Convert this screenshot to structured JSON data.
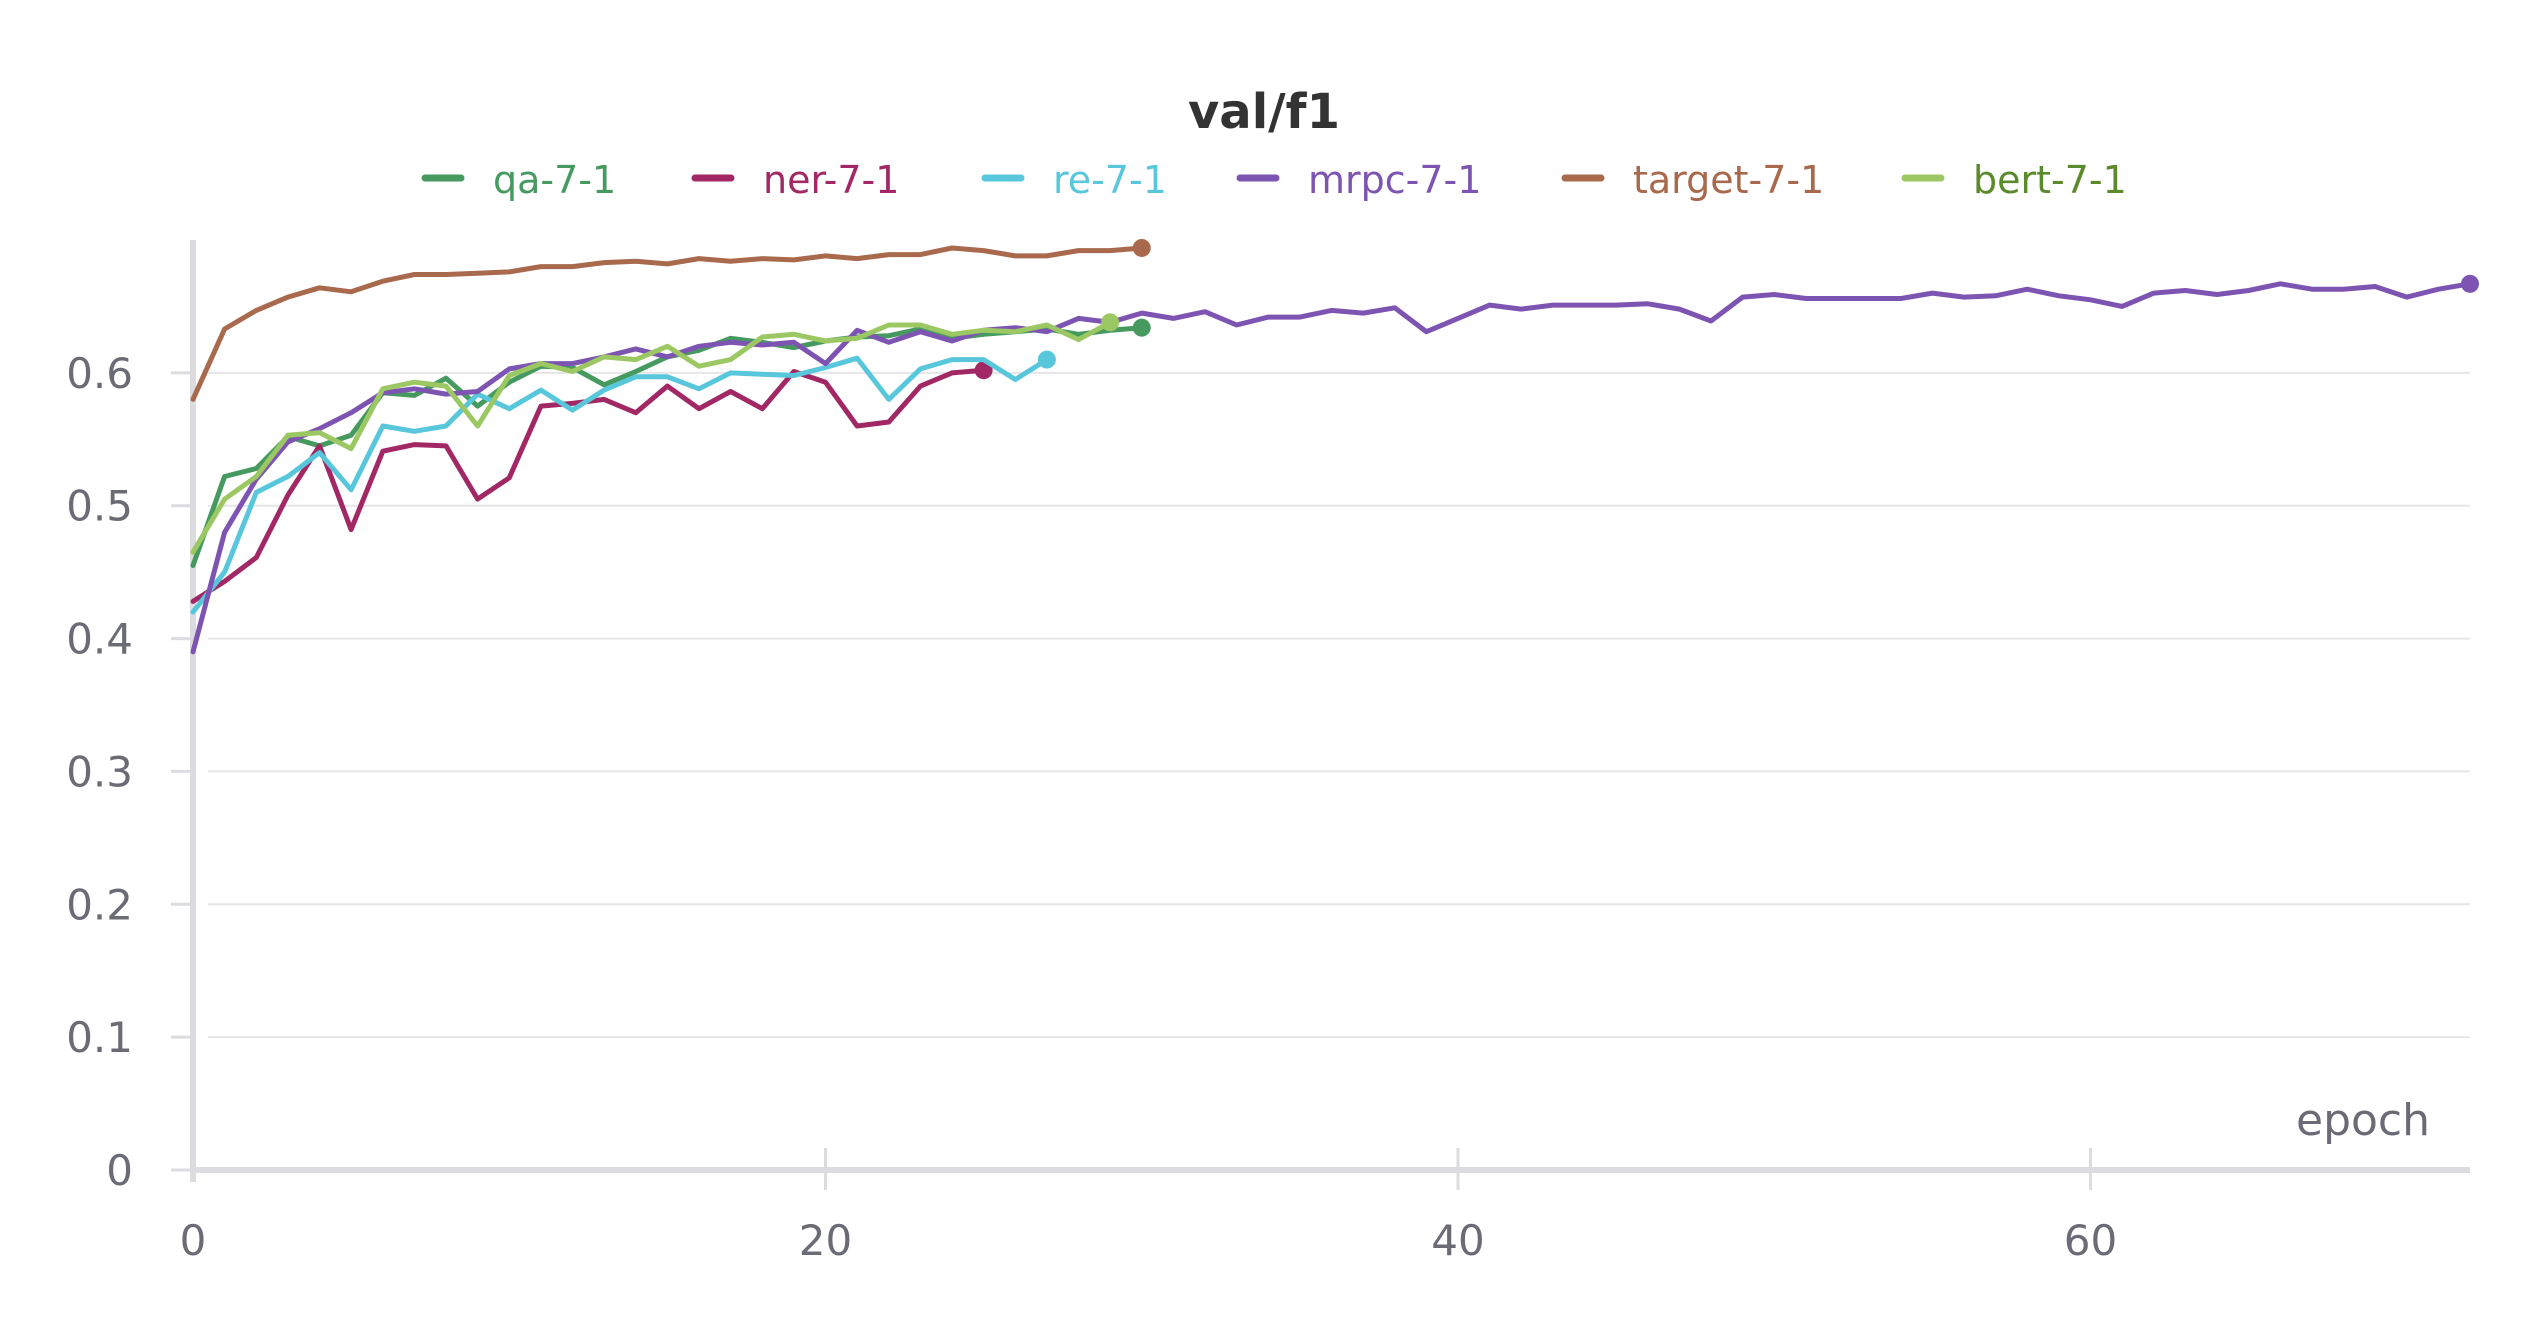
{
  "chart_data": {
    "type": "line",
    "title": "val/f1",
    "xlabel": "epoch",
    "ylabel": "",
    "xlim": [
      0,
      72
    ],
    "ylim": [
      0,
      0.7
    ],
    "xticks": [
      0,
      20,
      40,
      60
    ],
    "yticks": [
      0,
      0.1,
      0.2,
      0.3,
      0.4,
      0.5,
      0.6
    ],
    "xtick_labels": [
      "0",
      "20",
      "40",
      "60"
    ],
    "ytick_labels": [
      "0",
      "0.1",
      "0.2",
      "0.3",
      "0.4",
      "0.5",
      "0.6"
    ],
    "grid": true,
    "legend_position": "top",
    "series": [
      {
        "name": "qa-7-1",
        "color": "#479a5f",
        "x": [
          0,
          1,
          2,
          3,
          4,
          5,
          6,
          7,
          8,
          9,
          10,
          11,
          12,
          13,
          14,
          15,
          16,
          17,
          18,
          19,
          20,
          21,
          22,
          23,
          24,
          25,
          26,
          27,
          28,
          29,
          30
        ],
        "values": [
          0.455,
          0.522,
          0.528,
          0.552,
          0.545,
          0.553,
          0.585,
          0.583,
          0.596,
          0.575,
          0.593,
          0.605,
          0.604,
          0.591,
          0.601,
          0.612,
          0.617,
          0.626,
          0.623,
          0.619,
          0.624,
          0.627,
          0.628,
          0.633,
          0.626,
          0.629,
          0.631,
          0.633,
          0.629,
          0.632,
          0.634
        ]
      },
      {
        "name": "ner-7-1",
        "color": "#a12864",
        "x": [
          0,
          1,
          2,
          3,
          4,
          5,
          6,
          7,
          8,
          9,
          10,
          11,
          12,
          13,
          14,
          15,
          16,
          17,
          18,
          19,
          20,
          21,
          22,
          23,
          24,
          25
        ],
        "values": [
          0.428,
          0.443,
          0.461,
          0.508,
          0.545,
          0.482,
          0.541,
          0.546,
          0.545,
          0.505,
          0.521,
          0.575,
          0.577,
          0.58,
          0.57,
          0.59,
          0.573,
          0.586,
          0.573,
          0.601,
          0.593,
          0.56,
          0.563,
          0.59,
          0.6,
          0.602
        ]
      },
      {
        "name": "re-7-1",
        "color": "#58c7dc",
        "x": [
          0,
          1,
          2,
          3,
          4,
          5,
          6,
          7,
          8,
          9,
          10,
          11,
          12,
          13,
          14,
          15,
          16,
          17,
          18,
          19,
          20,
          21,
          22,
          23,
          24,
          25,
          26,
          27
        ],
        "values": [
          0.42,
          0.45,
          0.51,
          0.522,
          0.54,
          0.512,
          0.56,
          0.556,
          0.56,
          0.584,
          0.573,
          0.587,
          0.572,
          0.587,
          0.597,
          0.597,
          0.588,
          0.6,
          0.599,
          0.598,
          0.604,
          0.611,
          0.58,
          0.603,
          0.61,
          0.61,
          0.595,
          0.61
        ]
      },
      {
        "name": "mrpc-7-1",
        "color": "#7d54b2",
        "x": [
          0,
          1,
          2,
          3,
          4,
          5,
          6,
          7,
          8,
          9,
          10,
          11,
          12,
          13,
          14,
          15,
          16,
          17,
          18,
          19,
          20,
          21,
          22,
          23,
          24,
          25,
          26,
          27,
          28,
          29,
          30,
          31,
          32,
          33,
          34,
          35,
          36,
          37,
          38,
          39,
          40,
          41,
          42,
          43,
          44,
          45,
          46,
          47,
          48,
          49,
          50,
          51,
          52,
          53,
          54,
          55,
          56,
          57,
          58,
          59,
          60,
          61,
          62,
          63,
          64,
          65,
          66,
          67,
          68,
          69,
          70,
          71,
          72
        ],
        "values": [
          0.39,
          0.48,
          0.52,
          0.548,
          0.558,
          0.57,
          0.585,
          0.588,
          0.584,
          0.586,
          0.603,
          0.607,
          0.607,
          0.612,
          0.618,
          0.612,
          0.62,
          0.623,
          0.621,
          0.623,
          0.607,
          0.632,
          0.623,
          0.631,
          0.624,
          0.632,
          0.634,
          0.631,
          0.641,
          0.638,
          0.645,
          0.641,
          0.646,
          0.636,
          0.642,
          0.642,
          0.647,
          0.645,
          0.649,
          0.631,
          0.641,
          0.651,
          0.648,
          0.651,
          0.651,
          0.651,
          0.652,
          0.648,
          0.639,
          0.657,
          0.659,
          0.656,
          0.656,
          0.656,
          0.656,
          0.66,
          0.657,
          0.658,
          0.663,
          0.658,
          0.655,
          0.65,
          0.66,
          0.662,
          0.659,
          0.662,
          0.667,
          0.663,
          0.663,
          0.665,
          0.657,
          0.663,
          0.667
        ]
      },
      {
        "name": "target-7-1",
        "color": "#a9694d",
        "x": [
          0,
          1,
          2,
          3,
          4,
          5,
          6,
          7,
          8,
          9,
          10,
          11,
          12,
          13,
          14,
          15,
          16,
          17,
          18,
          19,
          20,
          21,
          22,
          23,
          24,
          25,
          26,
          27,
          28,
          29,
          30
        ],
        "values": [
          0.58,
          0.633,
          0.647,
          0.657,
          0.664,
          0.661,
          0.669,
          0.674,
          0.674,
          0.675,
          0.676,
          0.68,
          0.68,
          0.683,
          0.684,
          0.682,
          0.686,
          0.684,
          0.686,
          0.685,
          0.688,
          0.686,
          0.689,
          0.689,
          0.694,
          0.692,
          0.688,
          0.688,
          0.692,
          0.692,
          0.694
        ]
      },
      {
        "name": "bert-7-1",
        "color": "#9bc862",
        "legend_text_color": "#5a8a2c",
        "x": [
          0,
          1,
          2,
          3,
          4,
          5,
          6,
          7,
          8,
          9,
          10,
          11,
          12,
          13,
          14,
          15,
          16,
          17,
          18,
          19,
          20,
          21,
          22,
          23,
          24,
          25,
          26,
          27,
          28,
          29
        ],
        "values": [
          0.465,
          0.505,
          0.522,
          0.553,
          0.555,
          0.543,
          0.588,
          0.593,
          0.59,
          0.56,
          0.598,
          0.607,
          0.601,
          0.612,
          0.61,
          0.62,
          0.605,
          0.61,
          0.627,
          0.629,
          0.624,
          0.626,
          0.636,
          0.636,
          0.629,
          0.632,
          0.631,
          0.636,
          0.625,
          0.638
        ]
      }
    ]
  }
}
